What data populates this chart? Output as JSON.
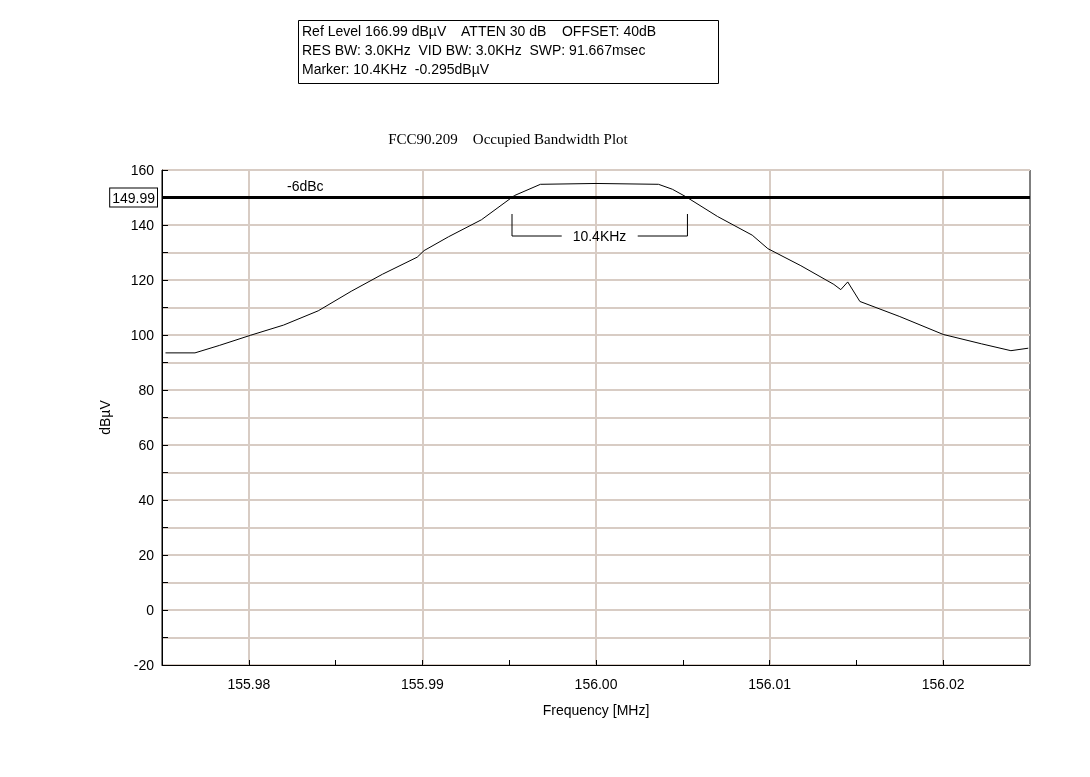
{
  "chart_data": {
    "type": "line",
    "title": "FCC90.209    Occupied Bandwidth Plot",
    "xlabel": "Frequency [MHz]",
    "ylabel": "dBµV",
    "annotations": [
      "Ref Level 166.99 dBµV    ATTEN 30 dB    OFFSET: 40dB",
      "RES BW: 3.0KHz  VID BW: 3.0KHz  SWP: 91.667msec",
      "Marker: 10.4KHz  -0.295dBµV",
      "10.4KHz",
      "-6dBc"
    ],
    "x": [
      155.9752,
      155.9769,
      155.9783,
      155.9801,
      155.982,
      155.984,
      155.9859,
      155.9877,
      155.9897,
      155.9901,
      155.9915,
      155.9934,
      155.9953,
      155.9968,
      156.0,
      156.0036,
      156.0044,
      156.0052,
      156.007,
      156.009,
      156.0099,
      156.0118,
      156.0137,
      156.0141,
      156.0145,
      156.0152,
      156.0175,
      156.02,
      156.0222,
      156.0239,
      156.0249
    ],
    "series": [
      {
        "color": "#000000",
        "values": [
          93.5,
          93.5,
          96.2,
          99.9,
          103.6,
          108.8,
          115.9,
          122.1,
          128.3,
          130.7,
          135.7,
          141.9,
          150.7,
          154.8,
          155.1,
          154.8,
          153,
          150.2,
          143.1,
          136.3,
          131.4,
          125.2,
          118.4,
          116.5,
          119.3,
          112.2,
          106.7,
          100.2,
          96.8,
          94.3,
          95.2
        ]
      }
    ],
    "xlim": [
      155.975,
      156.025
    ],
    "xticks": [
      155.98,
      {
        "value": 155.985,
        "label": null
      },
      155.99,
      {
        "value": 155.995,
        "label": null
      },
      {
        "value": 156.0,
        "label": "156.00"
      },
      {
        "value": 156.005,
        "label": null
      },
      156.01,
      {
        "value": 156.015,
        "label": null
      },
      156.02
    ],
    "ylim": [
      -20,
      160
    ],
    "yticks": [
      -20,
      {
        "value": -10,
        "label": null
      },
      0,
      {
        "value": 10,
        "label": null
      },
      20,
      {
        "value": 30,
        "label": null
      },
      40,
      {
        "value": 50,
        "label": null
      },
      60,
      {
        "value": 70,
        "label": null
      },
      80,
      {
        "value": 90,
        "label": null
      },
      100,
      {
        "value": 110,
        "label": null
      },
      120,
      {
        "value": 130,
        "label": null
      },
      140,
      {
        "value": 150,
        "label": null
      },
      160
    ],
    "ref_lines": [
      {
        "axis": "y",
        "value": 149.99,
        "label": "149.99",
        "color": "#000000"
      }
    ],
    "grid": true,
    "marker": "none",
    "line_style": "solid"
  }
}
